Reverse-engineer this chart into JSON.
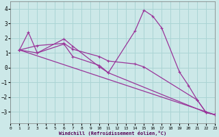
{
  "xlabel": "Windchill (Refroidissement éolien,°C)",
  "bg_color": "#cce8e8",
  "grid_color": "#aad4d4",
  "line_color": "#993399",
  "xlim": [
    0,
    23
  ],
  "ylim": [
    -3.8,
    4.5
  ],
  "yticks": [
    -3,
    -2,
    -1,
    0,
    1,
    2,
    3,
    4
  ],
  "xticks": [
    0,
    1,
    2,
    3,
    4,
    5,
    6,
    7,
    8,
    9,
    10,
    11,
    12,
    13,
    14,
    15,
    16,
    17,
    18,
    19,
    20,
    21,
    22,
    23
  ],
  "series1_x": [
    1,
    2,
    3,
    6,
    7,
    10,
    11,
    14,
    15,
    16,
    17,
    19,
    20,
    21,
    22,
    23
  ],
  "series1_y": [
    1.2,
    2.4,
    1.0,
    1.95,
    1.45,
    0.05,
    -0.35,
    2.5,
    3.9,
    3.5,
    2.7,
    -0.3,
    -1.2,
    -2.2,
    -3.05,
    -3.2
  ],
  "series2_x": [
    1,
    3,
    6,
    7,
    10,
    11,
    14,
    15,
    21,
    22,
    23
  ],
  "series2_y": [
    1.2,
    1.5,
    1.65,
    1.25,
    0.75,
    0.45,
    0.25,
    0.05,
    -2.2,
    -3.05,
    -3.2
  ],
  "series3_x": [
    1,
    23
  ],
  "series3_y": [
    1.2,
    -3.2
  ],
  "series4_x": [
    1,
    3,
    6,
    7,
    10,
    11,
    22,
    23
  ],
  "series4_y": [
    1.2,
    1.0,
    1.6,
    0.75,
    0.15,
    -0.35,
    -3.05,
    -3.2
  ]
}
